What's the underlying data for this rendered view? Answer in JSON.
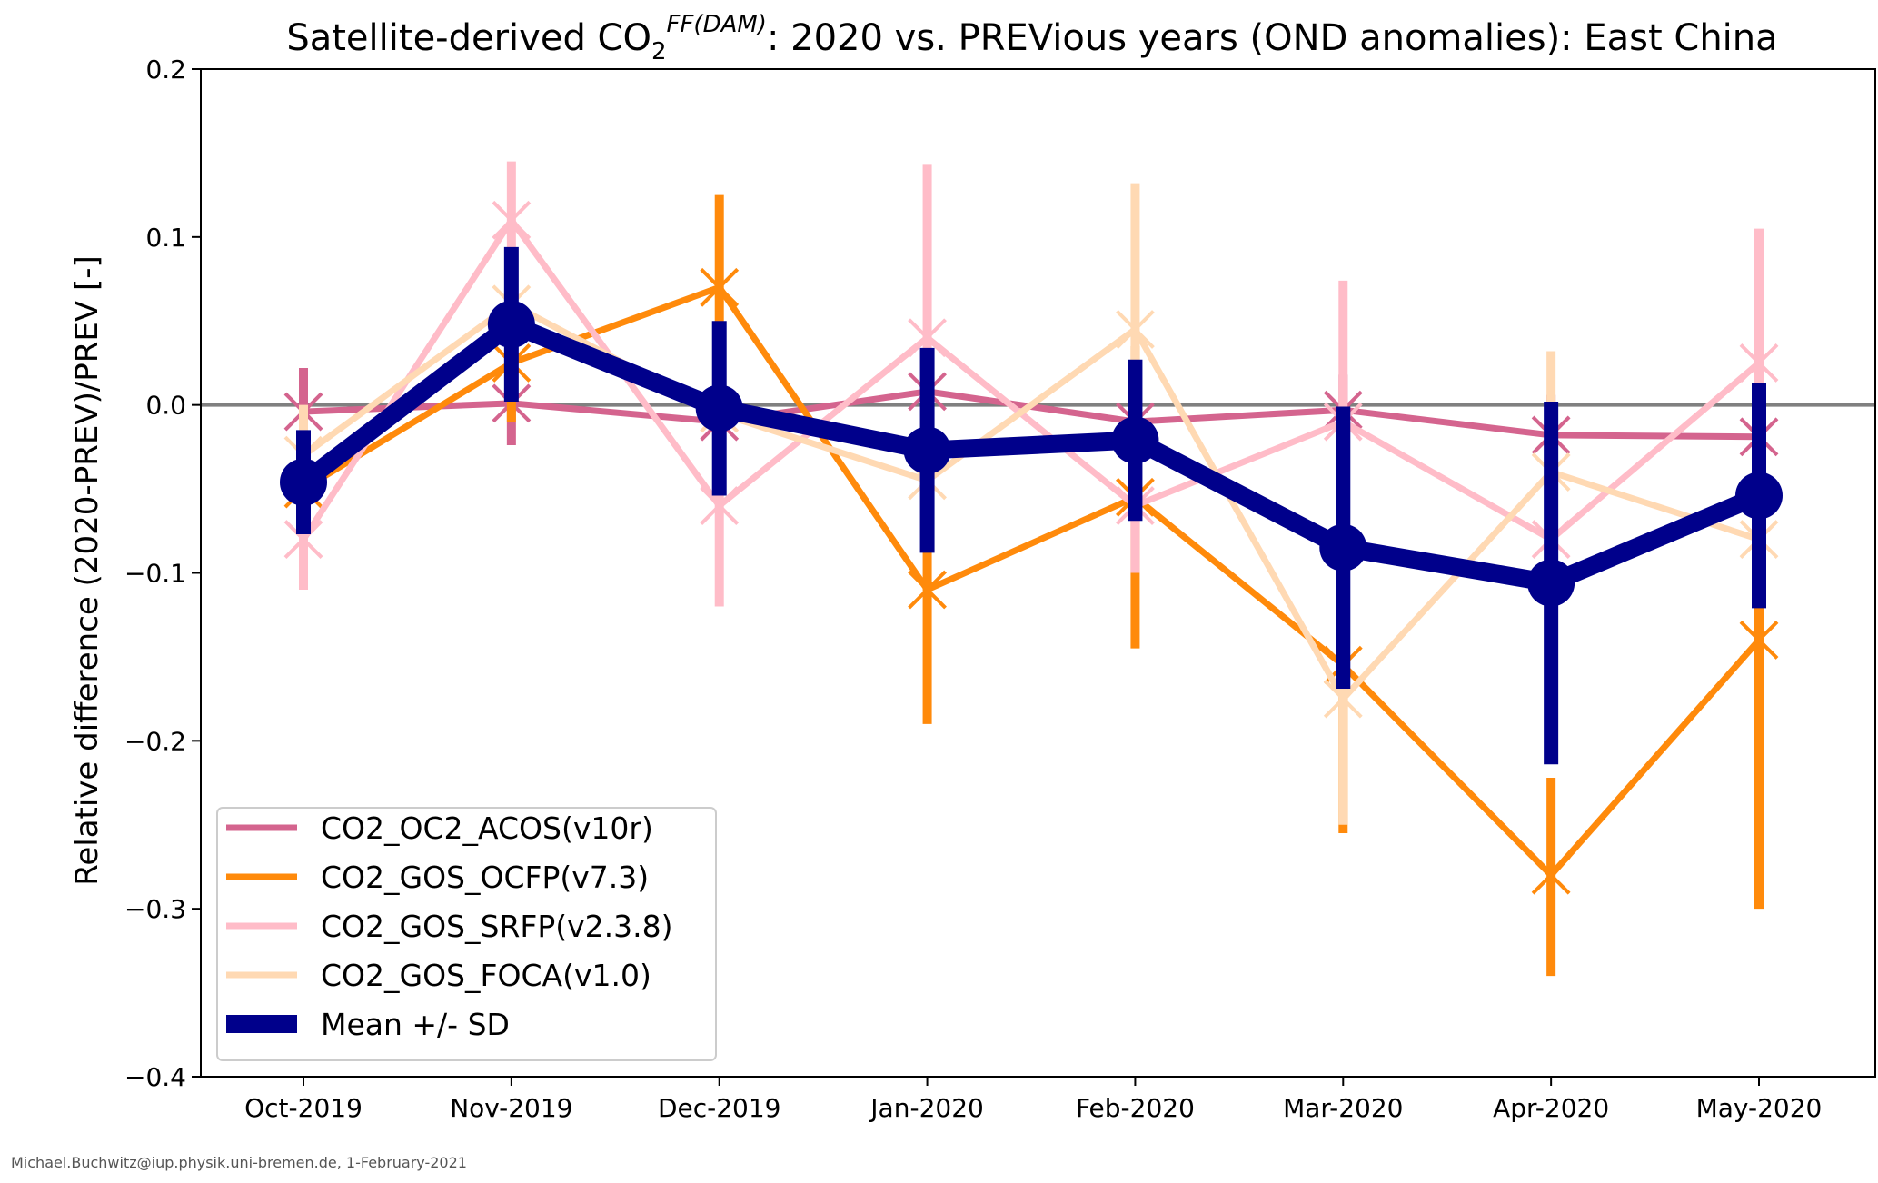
{
  "chart_data": {
    "type": "line",
    "title": {
      "pre": "Satellite-derived CO",
      "sub": "2",
      "sup": "FF(DAM)",
      "post": ": 2020 vs. PREVious years (OND anomalies): East China"
    },
    "xlabel": "",
    "ylabel": "Relative difference (2020-PREV)/PREV [-]",
    "categories": [
      "Oct-2019",
      "Nov-2019",
      "Dec-2019",
      "Jan-2020",
      "Feb-2020",
      "Mar-2020",
      "Apr-2020",
      "May-2020"
    ],
    "ylim": [
      -0.4,
      0.2
    ],
    "yticks": [
      -0.4,
      -0.3,
      -0.2,
      -0.1,
      0.0,
      0.1,
      0.2
    ],
    "ytick_labels": [
      "−0.4",
      "−0.3",
      "−0.2",
      "−0.1",
      "0.0",
      "0.1",
      "0.2"
    ],
    "reference_line": 0.0,
    "grid": false,
    "legend_position": "lower-left",
    "series": [
      {
        "name": "CO2_OC2_ACOS(v10r)",
        "color": "#d4648e",
        "marker": "x",
        "values": [
          -0.004,
          0.001,
          -0.01,
          0.008,
          -0.01,
          -0.003,
          -0.018,
          -0.019
        ],
        "err_low": [
          -0.03,
          -0.024,
          -0.02,
          -0.004,
          -0.02,
          -0.016,
          -0.03,
          -0.03
        ],
        "err_high": [
          0.022,
          0.02,
          0.0,
          0.018,
          0.0,
          0.018,
          0.006,
          -0.008
        ]
      },
      {
        "name": "CO2_GOS_OCFP(v7.3)",
        "color": "#ff8a0b",
        "marker": "x",
        "values": [
          -0.05,
          0.025,
          0.07,
          -0.11,
          -0.055,
          -0.155,
          -0.28,
          -0.14
        ],
        "err_low": [
          -0.1,
          -0.01,
          0.02,
          -0.19,
          -0.145,
          -0.255,
          -0.34,
          -0.3
        ],
        "err_high": [
          -0.01,
          0.06,
          0.125,
          -0.03,
          0.035,
          -0.055,
          -0.222,
          0.02
        ]
      },
      {
        "name": "CO2_GOS_SRFP(v2.3.8)",
        "color": "#ffbcc8",
        "marker": "x",
        "values": [
          -0.08,
          0.11,
          -0.06,
          0.04,
          -0.06,
          -0.01,
          -0.08,
          0.025
        ],
        "err_low": [
          -0.11,
          0.07,
          -0.12,
          -0.06,
          -0.1,
          -0.055,
          -0.1,
          -0.05
        ],
        "err_high": [
          -0.05,
          0.145,
          0.0,
          0.143,
          -0.02,
          0.074,
          -0.06,
          0.105
        ]
      },
      {
        "name": "CO2_GOS_FOCA(v1.0)",
        "color": "#ffd9b3",
        "marker": "x",
        "values": [
          -0.03,
          0.06,
          -0.005,
          -0.045,
          0.045,
          -0.175,
          -0.04,
          -0.08
        ],
        "err_low": [
          -0.06,
          0.03,
          -0.03,
          -0.06,
          -0.04,
          -0.25,
          -0.1,
          -0.12
        ],
        "err_high": [
          0.0,
          0.09,
          0.02,
          -0.03,
          0.132,
          -0.1,
          0.032,
          -0.04
        ]
      },
      {
        "name": "Mean +/- SD",
        "color": "#00008b",
        "marker": "o",
        "values": [
          -0.046,
          0.048,
          -0.002,
          -0.027,
          -0.021,
          -0.085,
          -0.106,
          -0.054
        ],
        "err_low": [
          -0.077,
          0.002,
          -0.054,
          -0.088,
          -0.069,
          -0.169,
          -0.214,
          -0.121
        ],
        "err_high": [
          -0.015,
          0.094,
          0.05,
          0.034,
          0.027,
          -0.001,
          0.002,
          0.013
        ]
      }
    ]
  },
  "footer": "Michael.Buchwitz@iup.physik.uni-bremen.de, 1-February-2021"
}
